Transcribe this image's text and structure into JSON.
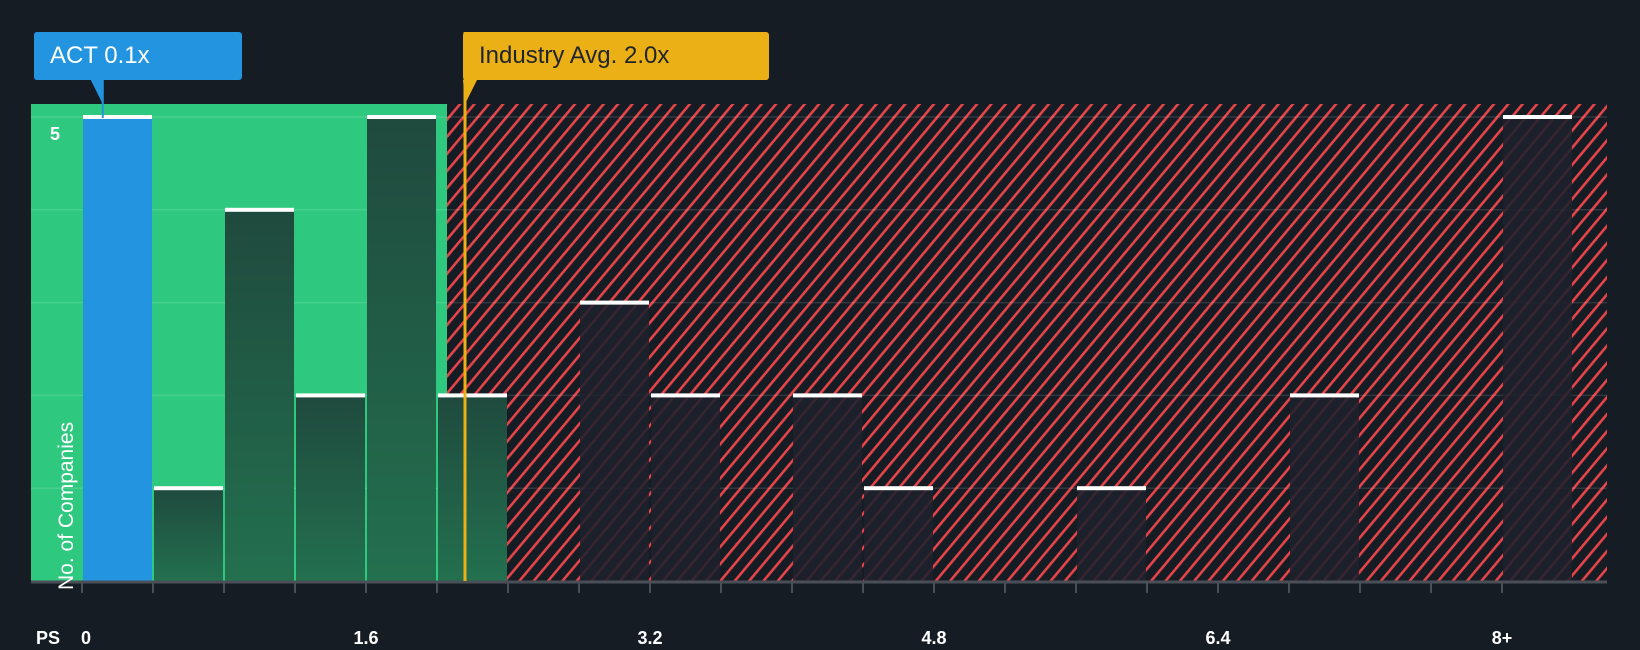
{
  "header": {
    "company_label": "ACT 0.1x",
    "industry_label": "Industry Avg. 2.0x"
  },
  "axis": {
    "x_prefix": "PS",
    "x_ticks": [
      "0",
      "1.6",
      "3.2",
      "4.8",
      "6.4",
      "8+"
    ],
    "y_label": "No. of Companies",
    "y_tick": "5"
  },
  "colors": {
    "background": "#161c24",
    "company": "#2394df",
    "industry": "#ebb016",
    "undervalued_zone": "#2ec97f",
    "overvalued_hatch": "#e5444a",
    "bar_top": "#ffffff"
  },
  "chart_data": {
    "type": "bar",
    "title": "Price to Sales Ratio distribution",
    "xlabel": "PS",
    "ylabel": "No. of Companies",
    "categories": [
      "0-0.4",
      "0.4-0.8",
      "0.8-1.2",
      "1.2-1.6",
      "1.6-2.0",
      "2.0-2.4",
      "2.4-2.8",
      "2.8-3.2",
      "3.2-3.6",
      "3.6-4.0",
      "4.0-4.4",
      "4.4-4.8",
      "4.8-5.2",
      "5.2-5.6",
      "5.6-6.0",
      "6.0-6.4",
      "6.4-6.8",
      "6.8-7.2",
      "7.2-7.6",
      "7.6-8.0",
      "8+"
    ],
    "values": [
      5,
      1,
      4,
      2,
      5,
      2,
      0,
      3,
      2,
      0,
      2,
      1,
      0,
      0,
      1,
      0,
      0,
      2,
      0,
      0,
      5
    ],
    "x_ticks": [
      0,
      1.6,
      3.2,
      4.8,
      6.4,
      "8+"
    ],
    "ylim": [
      0,
      5
    ],
    "y_ticks_labeled": [
      5
    ],
    "grid": true,
    "annotations": [
      {
        "label": "ACT 0.1x",
        "x": 0.1,
        "color": "#2394df"
      },
      {
        "label": "Industry Avg. 2.0x",
        "x": 2.0,
        "color": "#ebb016"
      }
    ],
    "highlighted_bin": "0-0.4",
    "regions": [
      {
        "name": "undervalued",
        "from": 0,
        "to": 1.95,
        "color": "#2ec97f"
      },
      {
        "name": "overvalued",
        "from": 1.95,
        "to": "8+",
        "pattern": "red-hatch"
      }
    ]
  }
}
